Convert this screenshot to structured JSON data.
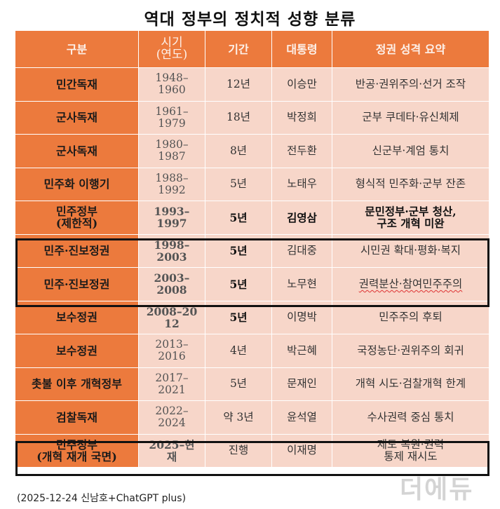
{
  "title": "역대 정부의 정치적 성향 분류",
  "headers": [
    "구분",
    "시기\n(연도)",
    "기간",
    "대통령",
    "정권 성격 요약"
  ],
  "rows": [
    {
      "category": "민간독재",
      "period": "1948–\n1960",
      "duration": "12년",
      "president": "이승만",
      "summary": "반공·권위주의·선거 조작"
    },
    {
      "category": "군사독재",
      "period": "1961–\n1979",
      "duration": "18년",
      "president": "박정희",
      "summary": "군부 쿠데타·유신체제"
    },
    {
      "category": "군사독재",
      "period": "1980–\n1987",
      "duration": "8년",
      "president": "전두환",
      "summary": "신군부·계엄 통치"
    },
    {
      "category": "민주화 이행기",
      "period": "1988–\n1992",
      "duration": "5년",
      "president": "노태우",
      "summary": "형식적 민주화·군부 잔존"
    },
    {
      "category": "민주정부\n(제한적)",
      "period": "1993–\n1997",
      "duration": "5년",
      "president": "김영삼",
      "summary": "문민정부·군부 청산,\n구조 개혁 미완"
    },
    {
      "category": "민주·진보정권",
      "period": "1998–\n2003",
      "duration": "5년",
      "president": "김대중",
      "summary": "시민권 확대·평화·복지"
    },
    {
      "category": "민주·진보정권",
      "period": "2003–\n2008",
      "duration": "5년",
      "president": "노무현",
      "summary": "권력분산·참여민주주의"
    },
    {
      "category": "보수정권",
      "period": "2008–20\n12",
      "duration": "5년",
      "president": "이명박",
      "summary": "민주주의 후퇴"
    },
    {
      "category": "보수정권",
      "period": "2013–\n2016",
      "duration": "4년",
      "president": "박근혜",
      "summary": "국정농단·권위주의 회귀"
    },
    {
      "category": "촛불 이후 개혁정부",
      "period": "2017–\n2021",
      "duration": "5년",
      "president": "문재인",
      "summary": "개혁 시도·검찰개혁 한계"
    },
    {
      "category": "검찰독재",
      "period": "2022–\n2024",
      "duration": "약 3년",
      "president": "윤석열",
      "summary": "수사권력 중심 통치"
    },
    {
      "category": "민주정부\n(개혁 재개 국면)",
      "period": "2025–현\n재",
      "duration": "진행",
      "president": "이재명",
      "summary": "제도 복원·권력\n통제 재시도"
    }
  ],
  "source": "(2025-12-24 신남호+ChatGPT plus)",
  "watermark": "더에듀",
  "colors": {
    "header_bg": "#ec7a3d",
    "cell_bg": "#f7d6c9",
    "highlight_border": "#111111"
  }
}
